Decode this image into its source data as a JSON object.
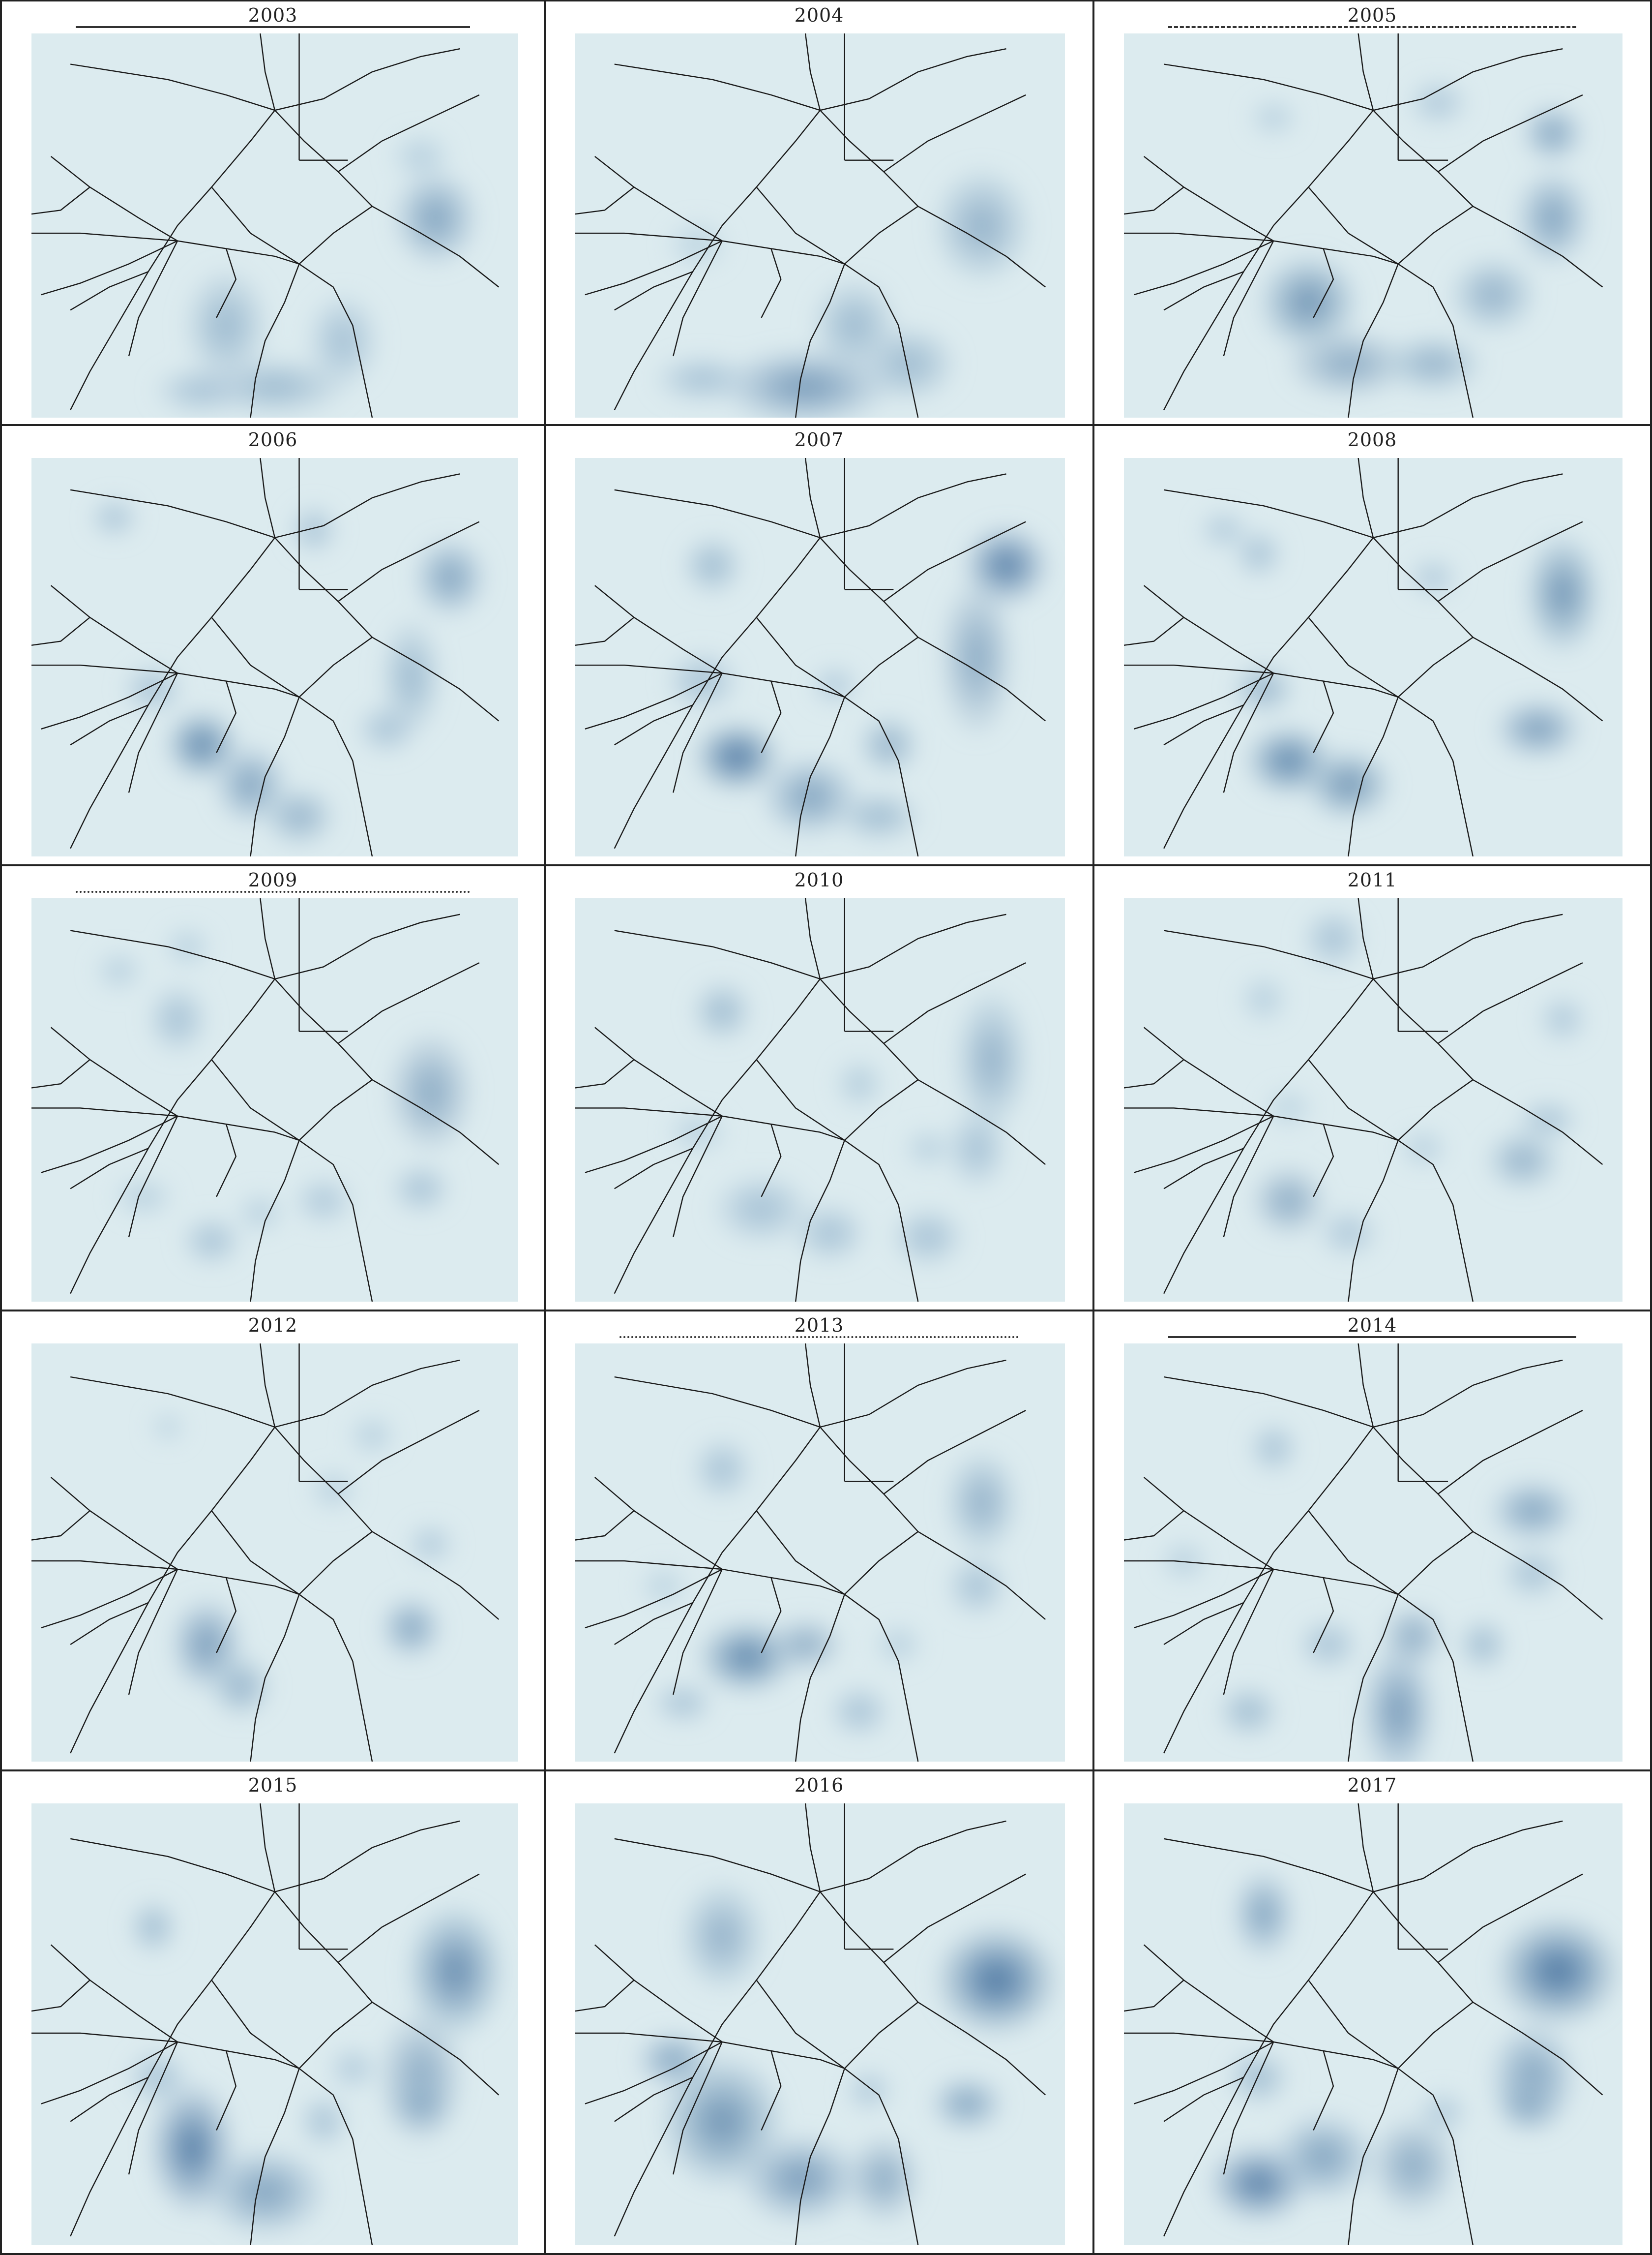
{
  "figure": {
    "panels": [
      {
        "year": "2003",
        "rule": "solid",
        "blobs": [
          [
            0.83,
            0.48,
            0.07,
            0.1,
            0.45
          ],
          [
            0.4,
            0.76,
            0.07,
            0.12,
            0.3
          ],
          [
            0.64,
            0.8,
            0.06,
            0.1,
            0.25
          ],
          [
            0.5,
            0.92,
            0.12,
            0.06,
            0.3
          ],
          [
            0.35,
            0.93,
            0.08,
            0.05,
            0.25
          ],
          [
            0.8,
            0.32,
            0.05,
            0.05,
            0.15
          ]
        ]
      },
      {
        "year": "2004",
        "rule": "none",
        "blobs": [
          [
            0.83,
            0.5,
            0.08,
            0.12,
            0.35
          ],
          [
            0.47,
            0.92,
            0.14,
            0.08,
            0.5
          ],
          [
            0.57,
            0.76,
            0.07,
            0.1,
            0.3
          ],
          [
            0.68,
            0.86,
            0.08,
            0.08,
            0.3
          ],
          [
            0.26,
            0.9,
            0.08,
            0.05,
            0.25
          ],
          [
            0.25,
            0.55,
            0.05,
            0.05,
            0.12
          ]
        ]
      },
      {
        "year": "2005",
        "rule": "dashed",
        "blobs": [
          [
            0.86,
            0.26,
            0.05,
            0.06,
            0.45
          ],
          [
            0.86,
            0.48,
            0.06,
            0.1,
            0.45
          ],
          [
            0.74,
            0.68,
            0.07,
            0.08,
            0.35
          ],
          [
            0.37,
            0.7,
            0.08,
            0.1,
            0.55
          ],
          [
            0.45,
            0.86,
            0.1,
            0.07,
            0.4
          ],
          [
            0.62,
            0.86,
            0.08,
            0.06,
            0.35
          ],
          [
            0.3,
            0.22,
            0.04,
            0.04,
            0.15
          ],
          [
            0.63,
            0.18,
            0.05,
            0.05,
            0.2
          ]
        ]
      },
      {
        "year": "2006",
        "rule": "none",
        "blobs": [
          [
            0.86,
            0.3,
            0.06,
            0.08,
            0.45
          ],
          [
            0.78,
            0.55,
            0.05,
            0.12,
            0.3
          ],
          [
            0.35,
            0.72,
            0.06,
            0.07,
            0.65
          ],
          [
            0.45,
            0.82,
            0.06,
            0.08,
            0.45
          ],
          [
            0.55,
            0.9,
            0.06,
            0.06,
            0.35
          ],
          [
            0.73,
            0.68,
            0.05,
            0.05,
            0.25
          ],
          [
            0.25,
            0.58,
            0.05,
            0.05,
            0.25
          ],
          [
            0.17,
            0.15,
            0.04,
            0.04,
            0.25
          ],
          [
            0.58,
            0.18,
            0.04,
            0.05,
            0.25
          ]
        ]
      },
      {
        "year": "2007",
        "rule": "none",
        "blobs": [
          [
            0.88,
            0.27,
            0.07,
            0.08,
            0.7
          ],
          [
            0.82,
            0.5,
            0.06,
            0.16,
            0.4
          ],
          [
            0.33,
            0.75,
            0.07,
            0.07,
            0.75
          ],
          [
            0.48,
            0.85,
            0.08,
            0.08,
            0.45
          ],
          [
            0.64,
            0.72,
            0.05,
            0.06,
            0.35
          ],
          [
            0.62,
            0.9,
            0.07,
            0.05,
            0.3
          ],
          [
            0.28,
            0.27,
            0.05,
            0.06,
            0.3
          ],
          [
            0.26,
            0.56,
            0.06,
            0.06,
            0.25
          ],
          [
            0.53,
            0.57,
            0.04,
            0.04,
            0.2
          ]
        ]
      },
      {
        "year": "2008",
        "rule": "none",
        "blobs": [
          [
            0.88,
            0.34,
            0.06,
            0.12,
            0.55
          ],
          [
            0.83,
            0.68,
            0.07,
            0.06,
            0.5
          ],
          [
            0.33,
            0.76,
            0.07,
            0.07,
            0.65
          ],
          [
            0.45,
            0.82,
            0.07,
            0.07,
            0.55
          ],
          [
            0.28,
            0.58,
            0.05,
            0.05,
            0.35
          ],
          [
            0.27,
            0.24,
            0.04,
            0.05,
            0.25
          ],
          [
            0.62,
            0.3,
            0.04,
            0.04,
            0.2
          ],
          [
            0.2,
            0.18,
            0.04,
            0.04,
            0.2
          ]
        ]
      },
      {
        "year": "2009",
        "rule": "dotted",
        "blobs": [
          [
            0.82,
            0.48,
            0.07,
            0.12,
            0.4
          ],
          [
            0.8,
            0.72,
            0.05,
            0.05,
            0.25
          ],
          [
            0.3,
            0.3,
            0.05,
            0.07,
            0.25
          ],
          [
            0.37,
            0.85,
            0.05,
            0.05,
            0.25
          ],
          [
            0.6,
            0.75,
            0.05,
            0.05,
            0.2
          ],
          [
            0.23,
            0.74,
            0.05,
            0.04,
            0.15
          ],
          [
            0.47,
            0.78,
            0.04,
            0.04,
            0.15
          ],
          [
            0.18,
            0.18,
            0.04,
            0.04,
            0.15
          ],
          [
            0.32,
            0.12,
            0.04,
            0.04,
            0.15
          ]
        ]
      },
      {
        "year": "2010",
        "rule": "none",
        "blobs": [
          [
            0.85,
            0.4,
            0.06,
            0.14,
            0.35
          ],
          [
            0.82,
            0.62,
            0.05,
            0.08,
            0.25
          ],
          [
            0.3,
            0.28,
            0.05,
            0.06,
            0.3
          ],
          [
            0.38,
            0.77,
            0.08,
            0.07,
            0.25
          ],
          [
            0.52,
            0.83,
            0.06,
            0.06,
            0.25
          ],
          [
            0.72,
            0.84,
            0.06,
            0.06,
            0.25
          ],
          [
            0.58,
            0.46,
            0.04,
            0.05,
            0.18
          ],
          [
            0.25,
            0.58,
            0.05,
            0.04,
            0.15
          ],
          [
            0.72,
            0.62,
            0.04,
            0.04,
            0.15
          ]
        ]
      },
      {
        "year": "2011",
        "rule": "none",
        "blobs": [
          [
            0.8,
            0.65,
            0.06,
            0.06,
            0.35
          ],
          [
            0.33,
            0.75,
            0.06,
            0.07,
            0.4
          ],
          [
            0.45,
            0.83,
            0.05,
            0.05,
            0.2
          ],
          [
            0.42,
            0.1,
            0.05,
            0.06,
            0.25
          ],
          [
            0.85,
            0.55,
            0.05,
            0.04,
            0.25
          ],
          [
            0.88,
            0.3,
            0.04,
            0.05,
            0.2
          ],
          [
            0.28,
            0.25,
            0.04,
            0.05,
            0.15
          ],
          [
            0.6,
            0.62,
            0.04,
            0.04,
            0.15
          ],
          [
            0.33,
            0.52,
            0.04,
            0.04,
            0.12
          ]
        ]
      },
      {
        "year": "2012",
        "rule": "none",
        "blobs": [
          [
            0.36,
            0.72,
            0.06,
            0.09,
            0.5
          ],
          [
            0.43,
            0.82,
            0.05,
            0.06,
            0.35
          ],
          [
            0.78,
            0.68,
            0.05,
            0.06,
            0.45
          ],
          [
            0.82,
            0.48,
            0.04,
            0.04,
            0.2
          ],
          [
            0.7,
            0.22,
            0.04,
            0.04,
            0.15
          ],
          [
            0.62,
            0.35,
            0.04,
            0.04,
            0.15
          ],
          [
            0.28,
            0.2,
            0.03,
            0.03,
            0.12
          ]
        ]
      },
      {
        "year": "2013",
        "rule": "dotted",
        "blobs": [
          [
            0.35,
            0.75,
            0.08,
            0.07,
            0.65
          ],
          [
            0.47,
            0.72,
            0.06,
            0.05,
            0.4
          ],
          [
            0.83,
            0.38,
            0.06,
            0.1,
            0.35
          ],
          [
            0.82,
            0.58,
            0.05,
            0.06,
            0.25
          ],
          [
            0.22,
            0.86,
            0.05,
            0.04,
            0.25
          ],
          [
            0.58,
            0.88,
            0.05,
            0.05,
            0.25
          ],
          [
            0.3,
            0.3,
            0.05,
            0.06,
            0.25
          ],
          [
            0.66,
            0.72,
            0.04,
            0.04,
            0.15
          ],
          [
            0.18,
            0.58,
            0.04,
            0.04,
            0.12
          ]
        ]
      },
      {
        "year": "2014",
        "rule": "solid",
        "blobs": [
          [
            0.82,
            0.4,
            0.07,
            0.06,
            0.45
          ],
          [
            0.82,
            0.55,
            0.05,
            0.05,
            0.25
          ],
          [
            0.55,
            0.88,
            0.06,
            0.13,
            0.5
          ],
          [
            0.58,
            0.7,
            0.05,
            0.06,
            0.4
          ],
          [
            0.72,
            0.72,
            0.04,
            0.05,
            0.3
          ],
          [
            0.41,
            0.72,
            0.05,
            0.05,
            0.25
          ],
          [
            0.25,
            0.88,
            0.05,
            0.05,
            0.3
          ],
          [
            0.3,
            0.25,
            0.04,
            0.05,
            0.25
          ],
          [
            0.12,
            0.52,
            0.04,
            0.04,
            0.15
          ]
        ]
      },
      {
        "year": "2015",
        "rule": "none",
        "blobs": [
          [
            0.87,
            0.38,
            0.08,
            0.12,
            0.6
          ],
          [
            0.8,
            0.62,
            0.07,
            0.12,
            0.4
          ],
          [
            0.8,
            0.68,
            0.05,
            0.05,
            0.45
          ],
          [
            0.33,
            0.78,
            0.07,
            0.12,
            0.7
          ],
          [
            0.48,
            0.88,
            0.1,
            0.08,
            0.45
          ],
          [
            0.6,
            0.72,
            0.04,
            0.05,
            0.25
          ],
          [
            0.25,
            0.28,
            0.04,
            0.05,
            0.3
          ],
          [
            0.26,
            0.62,
            0.05,
            0.05,
            0.25
          ],
          [
            0.66,
            0.6,
            0.04,
            0.04,
            0.2
          ]
        ]
      },
      {
        "year": "2016",
        "rule": "none",
        "blobs": [
          [
            0.86,
            0.4,
            0.1,
            0.1,
            0.75
          ],
          [
            0.8,
            0.68,
            0.06,
            0.05,
            0.45
          ],
          [
            0.3,
            0.72,
            0.1,
            0.12,
            0.55
          ],
          [
            0.46,
            0.85,
            0.1,
            0.08,
            0.5
          ],
          [
            0.63,
            0.85,
            0.06,
            0.08,
            0.4
          ],
          [
            0.2,
            0.58,
            0.06,
            0.05,
            0.45
          ],
          [
            0.3,
            0.3,
            0.07,
            0.1,
            0.35
          ],
          [
            0.6,
            0.65,
            0.04,
            0.04,
            0.2
          ]
        ]
      },
      {
        "year": "2017",
        "rule": "none",
        "blobs": [
          [
            0.87,
            0.38,
            0.1,
            0.1,
            0.75
          ],
          [
            0.82,
            0.62,
            0.07,
            0.1,
            0.45
          ],
          [
            0.81,
            0.68,
            0.05,
            0.05,
            0.45
          ],
          [
            0.27,
            0.86,
            0.08,
            0.07,
            0.7
          ],
          [
            0.4,
            0.8,
            0.08,
            0.08,
            0.45
          ],
          [
            0.58,
            0.82,
            0.07,
            0.09,
            0.4
          ],
          [
            0.28,
            0.25,
            0.05,
            0.08,
            0.45
          ],
          [
            0.27,
            0.62,
            0.05,
            0.05,
            0.3
          ],
          [
            0.64,
            0.7,
            0.04,
            0.04,
            0.2
          ]
        ]
      }
    ]
  }
}
